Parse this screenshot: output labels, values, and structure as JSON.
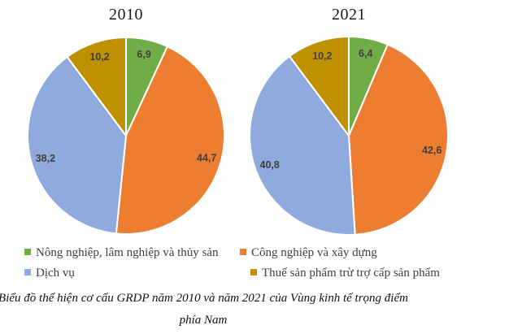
{
  "page": {
    "background": "#FFFFFF"
  },
  "colors": {
    "agriculture_green": "#70AD47",
    "industry_orange": "#ED7D31",
    "services_blue": "#8FAADC",
    "taxes_gold": "#BF9000",
    "slice_border": "#FFFFFF",
    "data_label_text": "#404040",
    "title_text": "#1A1A1A",
    "legend_text": "#404040",
    "caption_text": "#111111"
  },
  "chart_data": [
    {
      "type": "pie",
      "title": "2010",
      "categories": [
        "Nông nghiệp, lâm nghiệp và thủy sản",
        "Công nghiệp và xây dựng",
        "Dịch vụ",
        "Thuế sản phẩm trừ trợ cấp sản phẩm"
      ],
      "values": [
        6.9,
        44.7,
        38.2,
        10.2
      ],
      "value_labels": [
        "6,9",
        "44,7",
        "38,2",
        "10,2"
      ],
      "colors": [
        "#70AD47",
        "#ED7D31",
        "#8FAADC",
        "#BF9000"
      ],
      "start_angle_deg": 0,
      "direction": "clockwise",
      "unit": "percent",
      "legend_position": "bottom"
    },
    {
      "type": "pie",
      "title": "2021",
      "categories": [
        "Nông nghiệp, lâm nghiệp và thủy sản",
        "Công nghiệp và xây dựng",
        "Dịch vụ",
        "Thuế sản phẩm trừ trợ cấp sản phẩm"
      ],
      "values": [
        6.4,
        42.6,
        40.8,
        10.2
      ],
      "value_labels": [
        "6,4",
        "42,6",
        "40,8",
        "10,2"
      ],
      "colors": [
        "#70AD47",
        "#ED7D31",
        "#8FAADC",
        "#BF9000"
      ],
      "start_angle_deg": 0,
      "direction": "clockwise",
      "unit": "percent",
      "legend_position": "bottom"
    }
  ],
  "legend": {
    "items": [
      {
        "label": "Nông nghiệp, lâm nghiệp và thủy sản",
        "color": "#70AD47"
      },
      {
        "label": "Công nghiệp và xây dựng",
        "color": "#ED7D31"
      },
      {
        "label": "Dịch vụ",
        "color": "#8FAADC"
      },
      {
        "label": "Thuế sản phẩm trừ trợ cấp sản phẩm",
        "color": "#BF9000"
      }
    ]
  },
  "caption": {
    "line1": "Biểu đồ thể hiện cơ cấu GRDP năm 2010 và năm 2021 của Vùng kinh tế trọng điểm",
    "line2": "phía Nam"
  }
}
